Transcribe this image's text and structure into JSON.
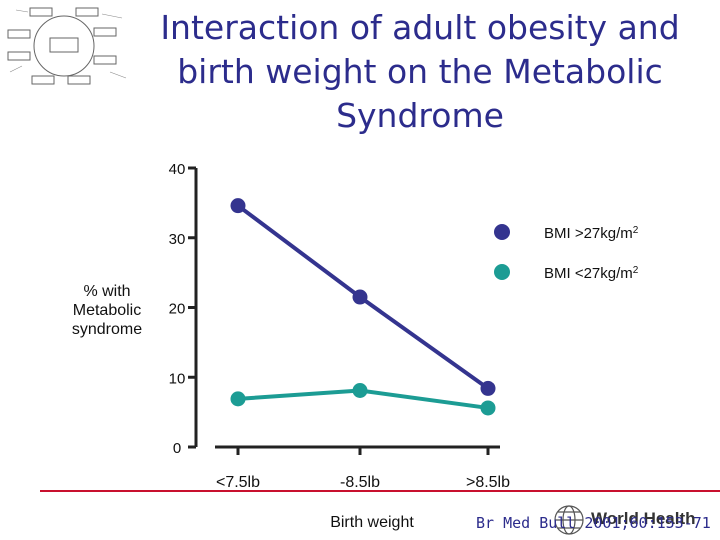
{
  "slide": {
    "title_lines": [
      "Interaction of adult obesity and",
      "birth weight on the Metabolic",
      "Syndrome"
    ],
    "citation": "Br Med Bull 2001;60:153-71",
    "logo_text": "World Health"
  },
  "chart_data": {
    "type": "line",
    "title": "Interaction of adult obesity and birth weight on the Metabolic Syndrome",
    "xlabel": "Birth weight",
    "ylabel_lines": [
      "% with",
      "Metabolic",
      "syndrome"
    ],
    "categories": [
      "<7.5lb",
      "-8.5lb",
      ">8.5lb"
    ],
    "ylim": [
      0,
      40
    ],
    "yticks": [
      "0",
      "10",
      "20",
      "30",
      "40"
    ],
    "series": [
      {
        "name": "BMI >27kg/m",
        "name_sup": "2",
        "color": "#34348f",
        "values": [
          34.6,
          21.5,
          8.4
        ]
      },
      {
        "name": "BMI <27kg/m",
        "name_sup": "2",
        "color": "#1c9c94",
        "values": [
          6.9,
          8.1,
          5.6
        ]
      }
    ],
    "grid": false,
    "legend": "top-right"
  },
  "icons": {
    "diagram": "cycle-diagram-icon",
    "logo": "who-globe-icon"
  }
}
